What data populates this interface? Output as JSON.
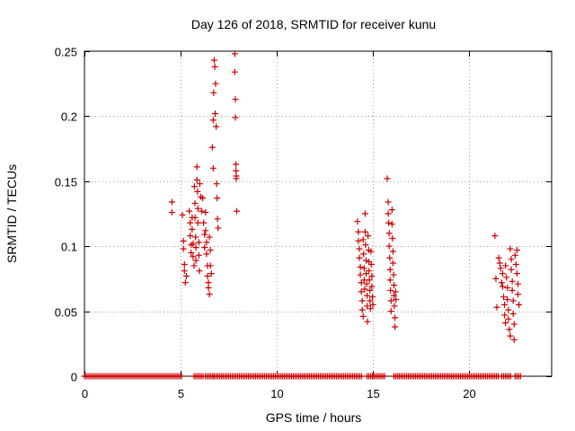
{
  "chart_data": {
    "type": "scatter",
    "title": "Day 126 of 2018, SRMTID for receiver kunu",
    "xlabel": "GPS time / hours",
    "ylabel": "SRMTID / TECUs",
    "xlim": [
      0,
      24.3
    ],
    "ylim": [
      0,
      0.25
    ],
    "x_ticks": [
      0,
      5,
      10,
      15,
      20
    ],
    "x_tick_labels": [
      "0",
      "5",
      "10",
      "15",
      "20"
    ],
    "y_ticks": [
      0,
      0.05,
      0.1,
      0.15,
      0.2,
      0.25
    ],
    "y_tick_labels": [
      "0",
      "0.05",
      "0.1",
      "0.15",
      "0.2",
      "0.25"
    ],
    "grid": true,
    "marker": "+",
    "color": "#cc0000",
    "series": [
      {
        "name": "SRMTID",
        "points": [
          [
            4.55,
            0.134
          ],
          [
            4.55,
            0.126
          ],
          [
            5.1,
            0.124
          ],
          [
            5.15,
            0.104
          ],
          [
            5.15,
            0.098
          ],
          [
            5.2,
            0.086
          ],
          [
            5.2,
            0.081
          ],
          [
            5.25,
            0.072
          ],
          [
            5.3,
            0.077
          ],
          [
            5.45,
            0.127
          ],
          [
            5.5,
            0.118
          ],
          [
            5.5,
            0.108
          ],
          [
            5.55,
            0.101
          ],
          [
            5.55,
            0.095
          ],
          [
            5.6,
            0.122
          ],
          [
            5.6,
            0.113
          ],
          [
            5.65,
            0.102
          ],
          [
            5.65,
            0.092
          ],
          [
            5.7,
            0.085
          ],
          [
            5.72,
            0.146
          ],
          [
            5.75,
            0.133
          ],
          [
            5.75,
            0.122
          ],
          [
            5.78,
            0.107
          ],
          [
            5.8,
            0.099
          ],
          [
            5.8,
            0.089
          ],
          [
            5.85,
            0.161
          ],
          [
            5.85,
            0.151
          ],
          [
            5.88,
            0.142
          ],
          [
            5.9,
            0.129
          ],
          [
            5.9,
            0.118
          ],
          [
            5.95,
            0.103
          ],
          [
            5.95,
            0.093
          ],
          [
            5.98,
            0.081
          ],
          [
            6.0,
            0.148
          ],
          [
            6.05,
            0.138
          ],
          [
            6.1,
            0.127
          ],
          [
            6.15,
            0.137
          ],
          [
            6.2,
            0.118
          ],
          [
            6.25,
            0.109
          ],
          [
            6.25,
            0.099
          ],
          [
            6.3,
            0.126
          ],
          [
            6.3,
            0.112
          ],
          [
            6.35,
            0.103
          ],
          [
            6.35,
            0.094
          ],
          [
            6.4,
            0.085
          ],
          [
            6.4,
            0.077
          ],
          [
            6.45,
            0.072
          ],
          [
            6.45,
            0.068
          ],
          [
            6.5,
            0.063
          ],
          [
            6.5,
            0.107
          ],
          [
            6.55,
            0.097
          ],
          [
            6.55,
            0.085
          ],
          [
            6.6,
            0.079
          ],
          [
            6.65,
            0.176
          ],
          [
            6.7,
            0.16
          ],
          [
            6.7,
            0.197
          ],
          [
            6.72,
            0.218
          ],
          [
            6.75,
            0.243
          ],
          [
            6.78,
            0.238
          ],
          [
            6.8,
            0.202
          ],
          [
            6.82,
            0.225
          ],
          [
            6.85,
            0.192
          ],
          [
            6.88,
            0.148
          ],
          [
            6.9,
            0.137
          ],
          [
            6.92,
            0.121
          ],
          [
            6.95,
            0.114
          ],
          [
            7.82,
            0.248
          ],
          [
            7.82,
            0.234
          ],
          [
            7.85,
            0.213
          ],
          [
            7.85,
            0.199
          ],
          [
            7.88,
            0.163
          ],
          [
            7.88,
            0.158
          ],
          [
            7.9,
            0.154
          ],
          [
            7.9,
            0.152
          ],
          [
            7.92,
            0.127
          ],
          [
            14.2,
            0.119
          ],
          [
            14.25,
            0.111
          ],
          [
            14.25,
            0.104
          ],
          [
            14.3,
            0.098
          ],
          [
            14.3,
            0.091
          ],
          [
            14.35,
            0.084
          ],
          [
            14.35,
            0.078
          ],
          [
            14.4,
            0.072
          ],
          [
            14.4,
            0.065
          ],
          [
            14.45,
            0.058
          ],
          [
            14.45,
            0.051
          ],
          [
            14.5,
            0.046
          ],
          [
            14.5,
            0.105
          ],
          [
            14.52,
            0.094
          ],
          [
            14.55,
            0.083
          ],
          [
            14.55,
            0.074
          ],
          [
            14.58,
            0.067
          ],
          [
            14.6,
            0.125
          ],
          [
            14.6,
            0.111
          ],
          [
            14.62,
            0.101
          ],
          [
            14.65,
            0.089
          ],
          [
            14.65,
            0.079
          ],
          [
            14.68,
            0.071
          ],
          [
            14.7,
            0.062
          ],
          [
            14.7,
            0.054
          ],
          [
            14.72,
            0.042
          ],
          [
            14.75,
            0.108
          ],
          [
            14.78,
            0.097
          ],
          [
            14.8,
            0.088
          ],
          [
            14.8,
            0.081
          ],
          [
            14.82,
            0.074
          ],
          [
            14.85,
            0.066
          ],
          [
            14.85,
            0.058
          ],
          [
            14.88,
            0.052
          ],
          [
            14.9,
            0.096
          ],
          [
            14.92,
            0.086
          ],
          [
            14.95,
            0.077
          ],
          [
            14.95,
            0.069
          ],
          [
            14.98,
            0.061
          ],
          [
            15.0,
            0.055
          ],
          [
            15.75,
            0.152
          ],
          [
            15.8,
            0.134
          ],
          [
            15.8,
            0.125
          ],
          [
            15.82,
            0.118
          ],
          [
            15.85,
            0.11
          ],
          [
            15.85,
            0.1
          ],
          [
            15.88,
            0.091
          ],
          [
            15.9,
            0.082
          ],
          [
            15.9,
            0.074
          ],
          [
            15.92,
            0.066
          ],
          [
            15.95,
            0.058
          ],
          [
            15.95,
            0.05
          ],
          [
            16.0,
            0.128
          ],
          [
            16.0,
            0.117
          ],
          [
            16.02,
            0.106
          ],
          [
            16.05,
            0.096
          ],
          [
            16.05,
            0.087
          ],
          [
            16.08,
            0.078
          ],
          [
            16.1,
            0.07
          ],
          [
            16.1,
            0.062
          ],
          [
            16.12,
            0.054
          ],
          [
            16.15,
            0.045
          ],
          [
            16.15,
            0.038
          ],
          [
            16.18,
            0.065
          ],
          [
            16.2,
            0.059
          ],
          [
            21.35,
            0.108
          ],
          [
            21.4,
            0.075
          ],
          [
            21.45,
            0.053
          ],
          [
            21.55,
            0.091
          ],
          [
            21.6,
            0.087
          ],
          [
            21.65,
            0.083
          ],
          [
            21.7,
            0.072
          ],
          [
            21.75,
            0.079
          ],
          [
            21.75,
            0.069
          ],
          [
            21.8,
            0.061
          ],
          [
            21.85,
            0.055
          ],
          [
            21.85,
            0.047
          ],
          [
            21.9,
            0.041
          ],
          [
            21.9,
            0.085
          ],
          [
            21.95,
            0.076
          ],
          [
            22.0,
            0.068
          ],
          [
            22.0,
            0.059
          ],
          [
            22.05,
            0.051
          ],
          [
            22.05,
            0.044
          ],
          [
            22.1,
            0.036
          ],
          [
            22.15,
            0.031
          ],
          [
            22.15,
            0.098
          ],
          [
            22.2,
            0.09
          ],
          [
            22.2,
            0.082
          ],
          [
            22.25,
            0.073
          ],
          [
            22.25,
            0.066
          ],
          [
            22.3,
            0.058
          ],
          [
            22.3,
            0.048
          ],
          [
            22.35,
            0.04
          ],
          [
            22.35,
            0.028
          ],
          [
            22.4,
            0.093
          ],
          [
            22.45,
            0.086
          ],
          [
            22.5,
            0.097
          ],
          [
            22.5,
            0.079
          ],
          [
            22.55,
            0.071
          ],
          [
            22.55,
            0.063
          ],
          [
            22.6,
            0.055
          ]
        ],
        "zero_segments": [
          [
            0.0,
            5.1
          ],
          [
            5.7,
            6.2
          ],
          [
            6.3,
            6.7
          ],
          [
            6.75,
            14.45
          ],
          [
            14.7,
            15.0
          ],
          [
            15.05,
            15.7
          ],
          [
            16.1,
            21.6
          ],
          [
            21.7,
            22.25
          ],
          [
            22.4,
            22.7
          ]
        ]
      }
    ]
  }
}
